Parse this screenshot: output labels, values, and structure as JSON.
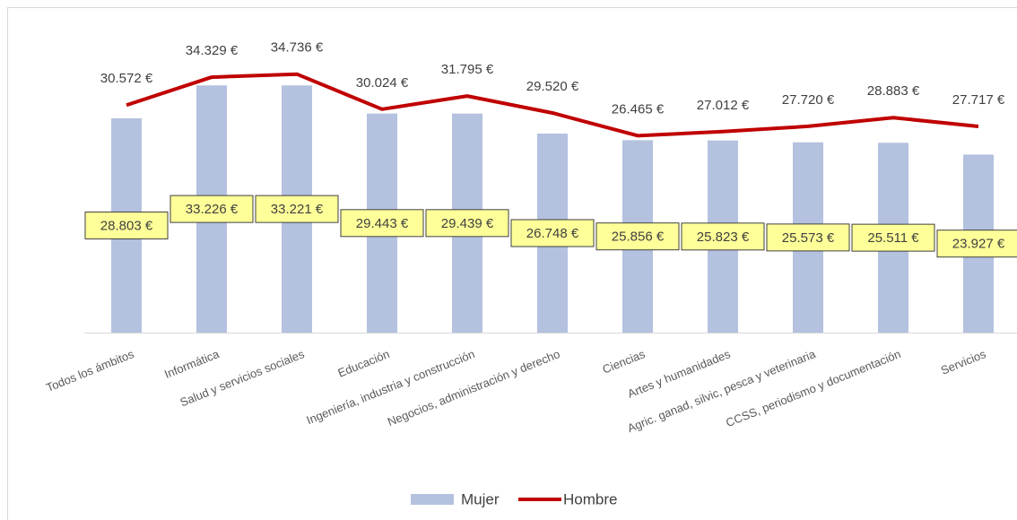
{
  "chart_data": {
    "type": "bar-line",
    "categories": [
      "Todos los ámbitos",
      "Informática",
      "Salud y servicios sociales",
      "Educación",
      "Ingeniería, industria y construcción",
      "Negocios, administración y derecho",
      "Ciencias",
      "Artes y humanidades",
      "Agric. ganad, silvic, pesca y veterinaria",
      "CCSS, periodismo y documentación",
      "Servicios"
    ],
    "series": [
      {
        "name": "Mujer",
        "type": "bar",
        "color": "#b4c1df",
        "values": [
          28803,
          33226,
          33221,
          29443,
          29439,
          26748,
          25856,
          25823,
          25573,
          25511,
          23927
        ],
        "value_labels": [
          "28.803 €",
          "33.226 €",
          "33.221 €",
          "29.443 €",
          "29.439 €",
          "26.748 €",
          "25.856 €",
          "25.823 €",
          "25.573 €",
          "25.511 €",
          "23.927 €"
        ]
      },
      {
        "name": "Hombre",
        "type": "line",
        "color": "#c00000",
        "values": [
          30572,
          34329,
          34736,
          30024,
          31795,
          29520,
          26465,
          27012,
          27720,
          28883,
          27717
        ],
        "value_labels": [
          "30.572 €",
          "34.329 €",
          "34.736 €",
          "30.024 €",
          "31.795 €",
          "29.520 €",
          "26.465 €",
          "27.012 €",
          "27.720 €",
          "28.883 €",
          "27.717 €"
        ]
      }
    ],
    "ylim": [
      0,
      40000
    ],
    "legend": "bottom"
  }
}
